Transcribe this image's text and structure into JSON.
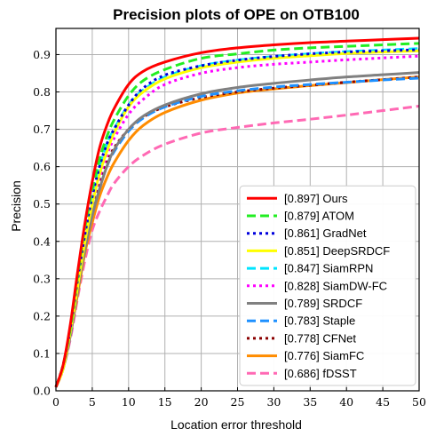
{
  "chart_data": {
    "type": "line",
    "title": "Precision plots of OPE on OTB100",
    "xlabel": "Location error threshold",
    "ylabel": "Precision",
    "xlim": [
      0,
      50
    ],
    "ylim": [
      0,
      0.97
    ],
    "x_ticks": [
      0,
      5,
      10,
      15,
      20,
      25,
      30,
      35,
      40,
      45,
      50
    ],
    "y_ticks": [
      0.0,
      0.1,
      0.2,
      0.3,
      0.4,
      0.5,
      0.6,
      0.7,
      0.8,
      0.9
    ],
    "x_tick_labels": [
      "0",
      "5",
      "10",
      "15",
      "20",
      "25",
      "30",
      "35",
      "40",
      "45",
      "50"
    ],
    "y_tick_labels": [
      "0.0",
      "0.1",
      "0.2",
      "0.3",
      "0.4",
      "0.5",
      "0.6",
      "0.7",
      "0.8",
      "0.9"
    ],
    "grid": true,
    "legend_position": "lower-right",
    "x": [
      0,
      1,
      2,
      3,
      4,
      5,
      6,
      7,
      8,
      10,
      12,
      15,
      20,
      25,
      30,
      35,
      40,
      45,
      50
    ],
    "series": [
      {
        "name": "[0.897] Ours",
        "color": "#ff0000",
        "dash": "solid",
        "width": 3,
        "values": [
          0.01,
          0.07,
          0.18,
          0.32,
          0.45,
          0.56,
          0.65,
          0.71,
          0.755,
          0.82,
          0.855,
          0.88,
          0.905,
          0.918,
          0.926,
          0.932,
          0.936,
          0.94,
          0.944
        ]
      },
      {
        "name": "[0.879] ATOM",
        "color": "#22ee22",
        "dash": "dashed",
        "width": 3,
        "values": [
          0.01,
          0.07,
          0.17,
          0.31,
          0.44,
          0.54,
          0.62,
          0.68,
          0.725,
          0.79,
          0.83,
          0.86,
          0.89,
          0.902,
          0.912,
          0.918,
          0.922,
          0.926,
          0.93
        ]
      },
      {
        "name": "[0.861] GradNet",
        "color": "#0000dd",
        "dash": "dotted",
        "width": 3,
        "values": [
          0.01,
          0.07,
          0.17,
          0.3,
          0.42,
          0.52,
          0.6,
          0.66,
          0.7,
          0.765,
          0.81,
          0.845,
          0.87,
          0.885,
          0.895,
          0.902,
          0.907,
          0.91,
          0.913
        ]
      },
      {
        "name": "[0.851] DeepSRDCF",
        "color": "#ffff00",
        "dash": "solid",
        "width": 3,
        "values": [
          0.01,
          0.06,
          0.16,
          0.28,
          0.4,
          0.5,
          0.58,
          0.64,
          0.69,
          0.76,
          0.8,
          0.835,
          0.865,
          0.88,
          0.89,
          0.897,
          0.903,
          0.907,
          0.91
        ]
      },
      {
        "name": "[0.847] SiamRPN",
        "color": "#00e5ff",
        "dash": "dashed",
        "width": 3,
        "values": [
          0.01,
          0.07,
          0.17,
          0.3,
          0.42,
          0.52,
          0.6,
          0.66,
          0.7,
          0.765,
          0.805,
          0.84,
          0.87,
          0.885,
          0.895,
          0.902,
          0.908,
          0.912,
          0.916
        ]
      },
      {
        "name": "[0.828] SiamDW-FC",
        "color": "#ff00ff",
        "dash": "dotted",
        "width": 3,
        "values": [
          0.01,
          0.06,
          0.16,
          0.28,
          0.4,
          0.5,
          0.57,
          0.63,
          0.675,
          0.74,
          0.78,
          0.82,
          0.85,
          0.865,
          0.874,
          0.88,
          0.886,
          0.891,
          0.896
        ]
      },
      {
        "name": "[0.789] SRDCF",
        "color": "#808080",
        "dash": "solid",
        "width": 3,
        "values": [
          0.01,
          0.06,
          0.15,
          0.27,
          0.38,
          0.47,
          0.54,
          0.6,
          0.645,
          0.7,
          0.735,
          0.765,
          0.795,
          0.812,
          0.823,
          0.832,
          0.84,
          0.846,
          0.852
        ]
      },
      {
        "name": "[0.783] Staple",
        "color": "#1e90ff",
        "dash": "dashed",
        "width": 3,
        "values": [
          0.01,
          0.06,
          0.15,
          0.27,
          0.38,
          0.47,
          0.54,
          0.6,
          0.64,
          0.695,
          0.73,
          0.76,
          0.788,
          0.803,
          0.813,
          0.82,
          0.826,
          0.832,
          0.837
        ]
      },
      {
        "name": "[0.778] CFNet",
        "color": "#8b0000",
        "dash": "dotted",
        "width": 3,
        "values": [
          0.01,
          0.07,
          0.17,
          0.29,
          0.4,
          0.49,
          0.56,
          0.61,
          0.65,
          0.7,
          0.733,
          0.76,
          0.785,
          0.8,
          0.81,
          0.818,
          0.826,
          0.833,
          0.84
        ]
      },
      {
        "name": "[0.776] SiamFC",
        "color": "#ff8c00",
        "dash": "solid",
        "width": 3,
        "values": [
          0.01,
          0.06,
          0.15,
          0.26,
          0.37,
          0.45,
          0.52,
          0.57,
          0.61,
          0.67,
          0.71,
          0.745,
          0.778,
          0.797,
          0.808,
          0.817,
          0.825,
          0.833,
          0.84
        ]
      },
      {
        "name": "[0.686] fDSST",
        "color": "#ff69b4",
        "dash": "dashed",
        "width": 3,
        "values": [
          0.01,
          0.06,
          0.14,
          0.25,
          0.35,
          0.43,
          0.48,
          0.52,
          0.555,
          0.6,
          0.63,
          0.66,
          0.69,
          0.705,
          0.717,
          0.727,
          0.738,
          0.75,
          0.762
        ]
      }
    ]
  }
}
